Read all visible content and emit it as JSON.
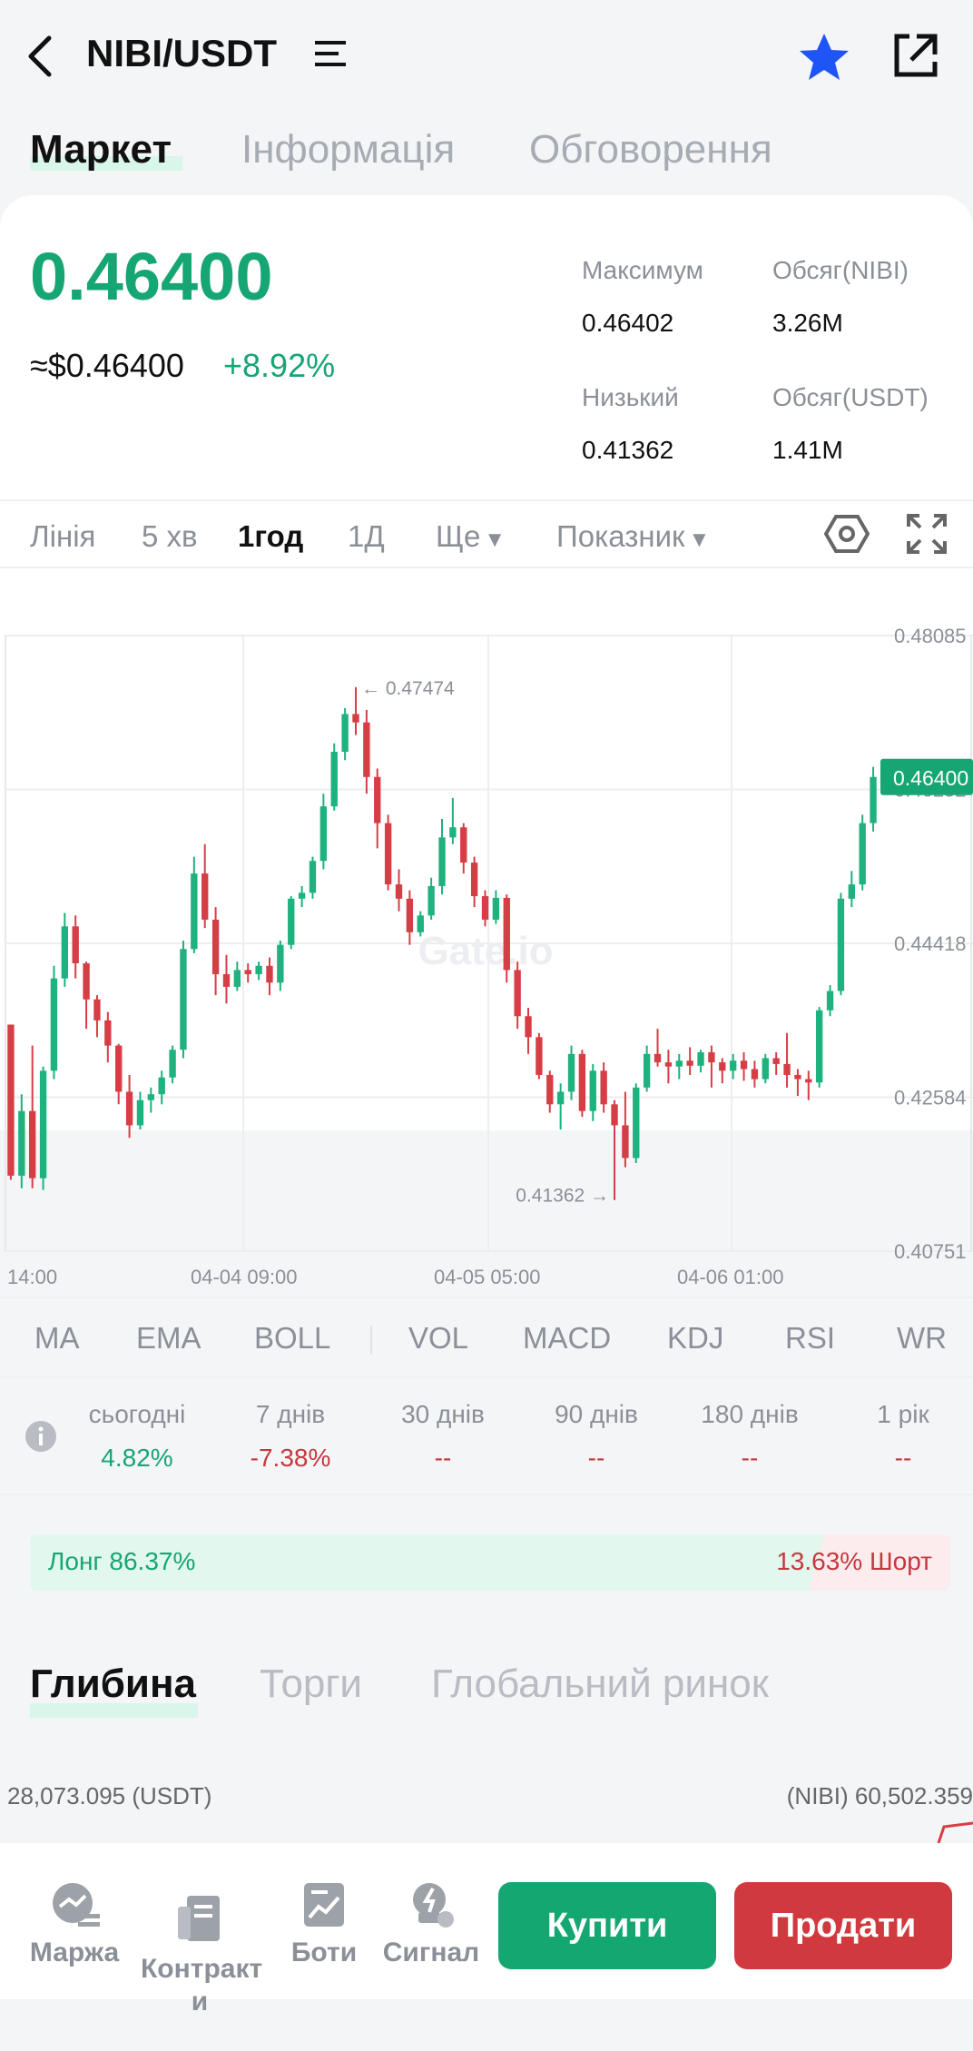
{
  "header": {
    "pair": "NIBI/USDT",
    "back_icon": "chevron-left-icon",
    "menu_icon": "list-icon",
    "fav_icon": "star-icon",
    "share_icon": "external-link-icon",
    "star_color": "#1f55f6"
  },
  "tabs": [
    "Маркет",
    "Інформація",
    "Обговорення"
  ],
  "price": {
    "last": "0.46400",
    "usd": "≈$0.46400",
    "change": "+8.92%"
  },
  "stats": {
    "high_label": "Максимум",
    "high_value": "0.46402",
    "low_label": "Низький",
    "low_value": "0.41362",
    "vol_base_label": "Обсяг(NIBI)",
    "vol_base_value": "3.26M",
    "vol_quote_label": "Обсяг(USDT)",
    "vol_quote_value": "1.41M"
  },
  "timeframes": [
    "Лінія",
    "5 хв",
    "1год",
    "1Д",
    "Ще",
    "Показник"
  ],
  "active_timeframe": "1год",
  "chart_data": {
    "type": "candlestick",
    "x_ticks": [
      "14:00",
      "04-04 09:00",
      "04-05 05:00",
      "04-06 01:00"
    ],
    "y_ticks": [
      0.48085,
      0.46252,
      0.44418,
      0.42584,
      0.40751
    ],
    "ylim": [
      0.40751,
      0.48085
    ],
    "current_price": "0.46400",
    "high_marker": "0.47474",
    "low_marker": "0.41362",
    "watermark": "Gate.io",
    "up_color": "#1db27e",
    "down_color": "#d63e45",
    "candles": [
      [
        0.4345,
        0.4345,
        0.416,
        0.4165
      ],
      [
        0.4165,
        0.4262,
        0.415,
        0.4242
      ],
      [
        0.4242,
        0.432,
        0.415,
        0.4162
      ],
      [
        0.4162,
        0.4295,
        0.4148,
        0.429
      ],
      [
        0.429,
        0.4415,
        0.428,
        0.44
      ],
      [
        0.44,
        0.4478,
        0.439,
        0.4462
      ],
      [
        0.4462,
        0.4475,
        0.44,
        0.4418
      ],
      [
        0.4418,
        0.442,
        0.434,
        0.4375
      ],
      [
        0.4375,
        0.438,
        0.433,
        0.435
      ],
      [
        0.435,
        0.436,
        0.43,
        0.432
      ],
      [
        0.432,
        0.4322,
        0.425,
        0.4265
      ],
      [
        0.4265,
        0.4285,
        0.421,
        0.4225
      ],
      [
        0.4225,
        0.4265,
        0.422,
        0.4255
      ],
      [
        0.4255,
        0.427,
        0.424,
        0.4262
      ],
      [
        0.4262,
        0.429,
        0.425,
        0.4282
      ],
      [
        0.4282,
        0.432,
        0.4275,
        0.4315
      ],
      [
        0.4315,
        0.4445,
        0.4305,
        0.4435
      ],
      [
        0.4435,
        0.4545,
        0.443,
        0.4525
      ],
      [
        0.4525,
        0.456,
        0.446,
        0.447
      ],
      [
        0.447,
        0.4485,
        0.438,
        0.4405
      ],
      [
        0.4405,
        0.4428,
        0.437,
        0.439
      ],
      [
        0.439,
        0.442,
        0.4385,
        0.441
      ],
      [
        0.441,
        0.4418,
        0.4395,
        0.4405
      ],
      [
        0.4405,
        0.442,
        0.4398,
        0.4415
      ],
      [
        0.4415,
        0.4425,
        0.438,
        0.4395
      ],
      [
        0.4395,
        0.4445,
        0.4385,
        0.444
      ],
      [
        0.444,
        0.4498,
        0.4435,
        0.4495
      ],
      [
        0.4495,
        0.451,
        0.4485,
        0.4502
      ],
      [
        0.4502,
        0.4545,
        0.4495,
        0.454
      ],
      [
        0.454,
        0.462,
        0.453,
        0.4605
      ],
      [
        0.4605,
        0.468,
        0.46,
        0.467
      ],
      [
        0.467,
        0.4722,
        0.466,
        0.4715
      ],
      [
        0.4715,
        0.4747,
        0.469,
        0.4705
      ],
      [
        0.4705,
        0.472,
        0.462,
        0.464
      ],
      [
        0.464,
        0.465,
        0.4555,
        0.4585
      ],
      [
        0.4585,
        0.4595,
        0.4505,
        0.4512
      ],
      [
        0.4512,
        0.453,
        0.448,
        0.4495
      ],
      [
        0.4495,
        0.4505,
        0.444,
        0.4455
      ],
      [
        0.4455,
        0.448,
        0.445,
        0.4475
      ],
      [
        0.4475,
        0.452,
        0.447,
        0.451
      ],
      [
        0.451,
        0.459,
        0.45,
        0.4568
      ],
      [
        0.4568,
        0.4615,
        0.456,
        0.458
      ],
      [
        0.458,
        0.4585,
        0.4525,
        0.4538
      ],
      [
        0.4538,
        0.4545,
        0.4485,
        0.4498
      ],
      [
        0.4498,
        0.4505,
        0.4462,
        0.447
      ],
      [
        0.447,
        0.4505,
        0.4465,
        0.4496
      ],
      [
        0.4496,
        0.45,
        0.4395,
        0.441
      ],
      [
        0.441,
        0.442,
        0.434,
        0.4355
      ],
      [
        0.4355,
        0.4365,
        0.431,
        0.433
      ],
      [
        0.433,
        0.4335,
        0.428,
        0.4285
      ],
      [
        0.4285,
        0.429,
        0.424,
        0.425
      ],
      [
        0.425,
        0.4275,
        0.422,
        0.4265
      ],
      [
        0.4265,
        0.432,
        0.4255,
        0.431
      ],
      [
        0.431,
        0.4315,
        0.4235,
        0.4242
      ],
      [
        0.4242,
        0.4298,
        0.423,
        0.429
      ],
      [
        0.429,
        0.43,
        0.424,
        0.425
      ],
      [
        0.425,
        0.4255,
        0.4136,
        0.4225
      ],
      [
        0.4225,
        0.4265,
        0.4175,
        0.4186
      ],
      [
        0.4186,
        0.4275,
        0.418,
        0.427
      ],
      [
        0.427,
        0.432,
        0.4265,
        0.431
      ],
      [
        0.431,
        0.434,
        0.4295,
        0.43
      ],
      [
        0.43,
        0.4315,
        0.4275,
        0.4295
      ],
      [
        0.4295,
        0.431,
        0.428,
        0.4302
      ],
      [
        0.4302,
        0.4318,
        0.4285,
        0.4296
      ],
      [
        0.4296,
        0.4315,
        0.4288,
        0.4312
      ],
      [
        0.4312,
        0.432,
        0.427,
        0.43
      ],
      [
        0.43,
        0.4305,
        0.4275,
        0.429
      ],
      [
        0.429,
        0.431,
        0.428,
        0.4302
      ],
      [
        0.4302,
        0.4312,
        0.4278,
        0.4292
      ],
      [
        0.4292,
        0.4302,
        0.427,
        0.428
      ],
      [
        0.428,
        0.431,
        0.4275,
        0.4305
      ],
      [
        0.4305,
        0.4312,
        0.4285,
        0.4298
      ],
      [
        0.4298,
        0.4335,
        0.427,
        0.4285
      ],
      [
        0.4285,
        0.4292,
        0.426,
        0.428
      ],
      [
        0.428,
        0.429,
        0.4255,
        0.4276
      ],
      [
        0.4276,
        0.4366,
        0.427,
        0.4362
      ],
      [
        0.4362,
        0.4392,
        0.4355,
        0.4385
      ],
      [
        0.4385,
        0.4502,
        0.438,
        0.4495
      ],
      [
        0.4495,
        0.4528,
        0.4485,
        0.4512
      ],
      [
        0.4512,
        0.4595,
        0.4505,
        0.4585
      ],
      [
        0.4585,
        0.4652,
        0.4575,
        0.464
      ]
    ]
  },
  "indicators": [
    "MA",
    "EMA",
    "BOLL",
    "VOL",
    "MACD",
    "KDJ",
    "RSI",
    "WR"
  ],
  "performance": [
    {
      "label": "сьогодні",
      "value": "4.82%",
      "color": "#16a673"
    },
    {
      "label": "7 днів",
      "value": "-7.38%",
      "color": "#c6383f"
    },
    {
      "label": "30 днів",
      "value": "--",
      "color": "#c6383f"
    },
    {
      "label": "90 днів",
      "value": "--",
      "color": "#c6383f"
    },
    {
      "label": "180 днів",
      "value": "--",
      "color": "#c6383f"
    },
    {
      "label": "1 рік",
      "value": "--",
      "color": "#c6383f"
    }
  ],
  "long_short": {
    "long": "Лонг 86.37%",
    "short": "13.63% Шорт",
    "long_pct": 86.37
  },
  "depth_tabs": [
    "Глибина",
    "Торги",
    "Глобальний ринок"
  ],
  "depth": {
    "left": "28,073.095 (USDT)",
    "right": "(NIBI) 60,502.359"
  },
  "bottom_nav": [
    {
      "label": "Маржа",
      "icon": "margin-icon"
    },
    {
      "label": "Контракт\nи",
      "icon": "contract-icon"
    },
    {
      "label": "Боти",
      "icon": "bot-icon"
    },
    {
      "label": "Сигнал",
      "icon": "signal-icon"
    }
  ],
  "buttons": {
    "buy": "Купити",
    "sell": "Продати"
  }
}
